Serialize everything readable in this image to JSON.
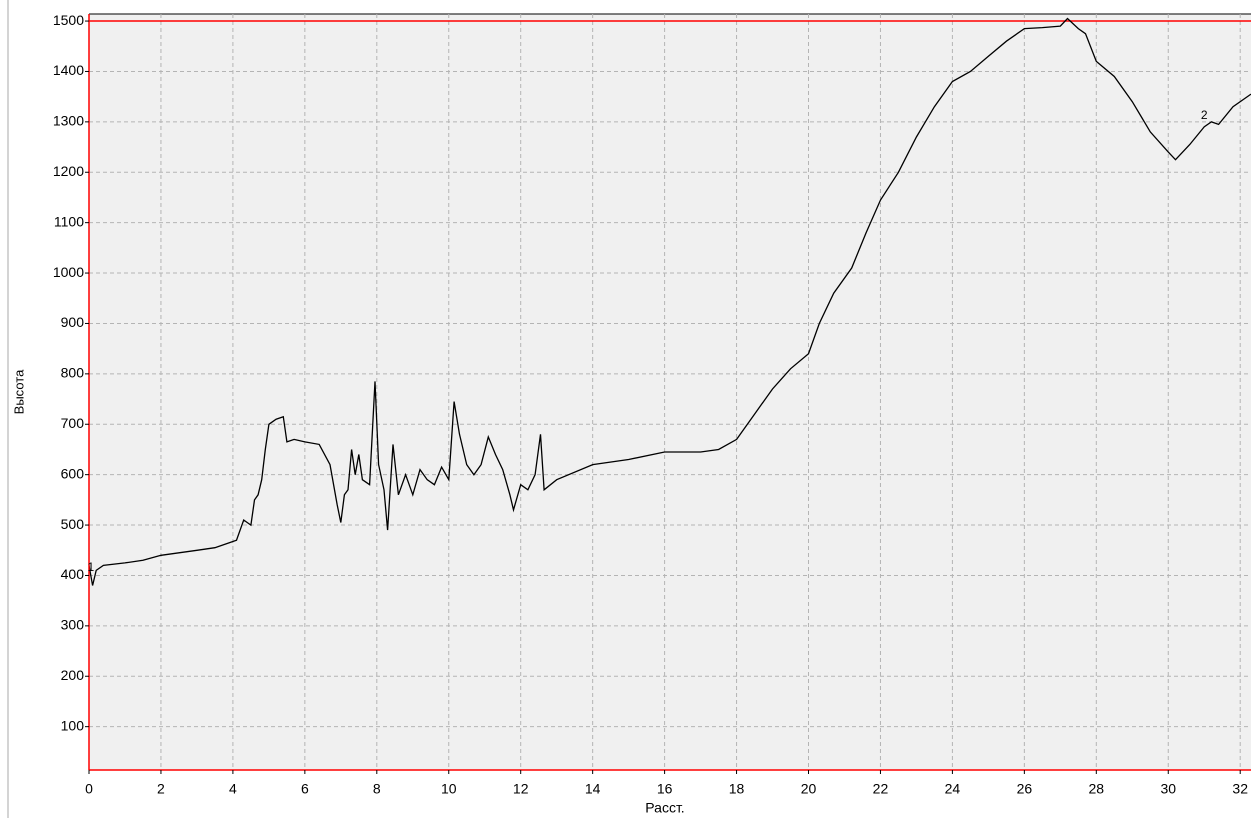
{
  "chart_data": {
    "type": "line",
    "x_label": "Расст.",
    "y_label": "Высота",
    "x": [
      0,
      0.1,
      0.2,
      0.4,
      1,
      1.5,
      2,
      2.5,
      3,
      3.5,
      3.9,
      4.1,
      4.3,
      4.5,
      4.6,
      4.7,
      4.8,
      4.9,
      5.0,
      5.2,
      5.4,
      5.5,
      5.7,
      6,
      6.4,
      6.7,
      6.9,
      7.0,
      7.1,
      7.2,
      7.3,
      7.4,
      7.5,
      7.6,
      7.8,
      7.95,
      8.05,
      8.2,
      8.3,
      8.45,
      8.6,
      8.8,
      9.0,
      9.2,
      9.4,
      9.6,
      9.8,
      10.0,
      10.15,
      10.3,
      10.5,
      10.7,
      10.9,
      11.1,
      11.3,
      11.5,
      11.7,
      11.8,
      12.0,
      12.2,
      12.4,
      12.55,
      12.65,
      13,
      14,
      15,
      16,
      17,
      17.5,
      18,
      18.5,
      19,
      19.5,
      20,
      20.3,
      20.7,
      21.2,
      21.6,
      22,
      22.5,
      23,
      23.5,
      24,
      24.5,
      25,
      25.5,
      26,
      26.5,
      27,
      27.2,
      27.5,
      27.7,
      28,
      28.5,
      29,
      29.5,
      30,
      30.2,
      30.6,
      31,
      31.2,
      31.4,
      31.8,
      32.3
    ],
    "series": [
      {
        "name": null,
        "color": "#000000",
        "values": [
          420,
          380,
          410,
          420,
          425,
          430,
          440,
          445,
          450,
          455,
          465,
          470,
          510,
          500,
          550,
          560,
          590,
          650,
          700,
          710,
          715,
          665,
          670,
          665,
          660,
          620,
          540,
          505,
          560,
          570,
          650,
          600,
          640,
          590,
          580,
          785,
          620,
          570,
          490,
          660,
          560,
          600,
          560,
          610,
          590,
          580,
          615,
          590,
          745,
          680,
          620,
          600,
          620,
          675,
          640,
          610,
          560,
          530,
          580,
          570,
          600,
          680,
          570,
          590,
          620,
          630,
          645,
          645,
          650,
          670,
          720,
          770,
          810,
          840,
          900,
          960,
          1010,
          1080,
          1145,
          1200,
          1270,
          1330,
          1380,
          1400,
          1430,
          1460,
          1485,
          1487,
          1490,
          1505,
          1485,
          1475,
          1420,
          1390,
          1340,
          1280,
          1240,
          1225,
          1255,
          1290,
          1300,
          1295,
          1330,
          1355
        ]
      }
    ],
    "annotations": [
      {
        "text": "1",
        "x": 0.05,
        "y": 415
      },
      {
        "text": "2",
        "x": 31.0,
        "y": 1312
      }
    ],
    "hline": 1500,
    "hline_color": "#ff0000",
    "xlim": [
      0,
      32.3
    ],
    "ylim": [
      14,
      1514
    ],
    "xticks": [
      0,
      2,
      4,
      6,
      8,
      10,
      12,
      14,
      16,
      18,
      20,
      22,
      24,
      26,
      28,
      30,
      32
    ],
    "yticks": [
      100,
      200,
      300,
      400,
      500,
      600,
      700,
      800,
      900,
      1000,
      1100,
      1200,
      1300,
      1400,
      1500
    ],
    "grid": true
  }
}
